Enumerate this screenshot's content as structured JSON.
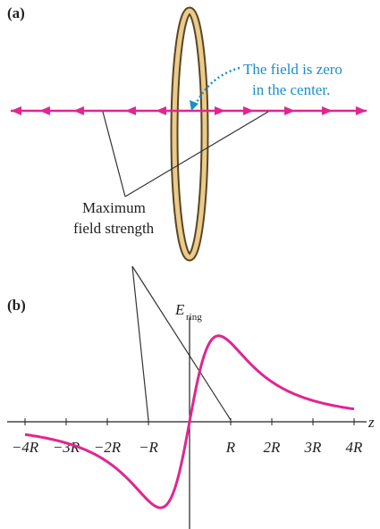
{
  "panel_a": {
    "label": "(a)",
    "annotation": [
      "The field is zero",
      "in the center."
    ],
    "callout": [
      "Maximum",
      "field strength"
    ]
  },
  "panel_b": {
    "label": "(b)",
    "y_axis_label": "E",
    "y_axis_subscript": "ring",
    "x_axis_label": "z",
    "x_ticks": [
      "−4R",
      "−3R",
      "−2R",
      "−R",
      "R",
      "2R",
      "3R",
      "4R"
    ]
  }
}
